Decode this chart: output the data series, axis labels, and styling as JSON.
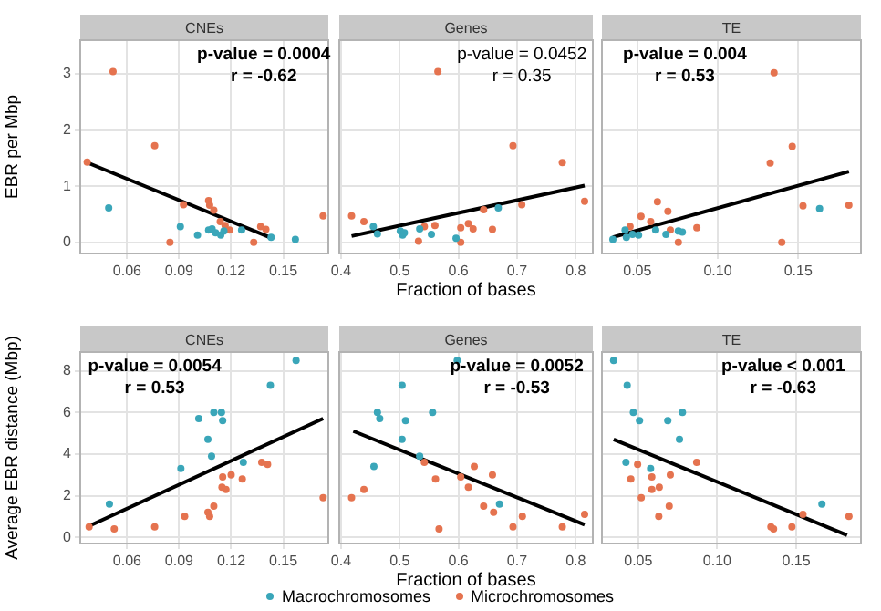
{
  "chart_data": [
    {
      "type": "scatter",
      "title": "CNEs",
      "ylabel": "EBR per Mbp",
      "annotations": [
        "p-value = 0.0004",
        "r = -0.62"
      ],
      "xlim": [
        0.033,
        0.176
      ],
      "xticks": [
        0.06,
        0.09,
        0.12,
        0.15
      ],
      "ylim": [
        -0.2,
        3.6
      ],
      "yticks": [
        0,
        1,
        2,
        3
      ],
      "grid": true,
      "marker": "circle",
      "series": [
        {
          "color": "#3aa6b9",
          "x": [
            0.0494,
            0.0907,
            0.1006,
            0.107,
            0.109,
            0.111,
            0.114,
            0.1158,
            0.126,
            0.143,
            0.157
          ],
          "values": [
            0.61,
            0.28,
            0.13,
            0.22,
            0.24,
            0.17,
            0.13,
            0.2,
            0.22,
            0.09,
            0.05
          ]
        },
        {
          "color": "#e5734f",
          "x": [
            0.0519,
            0.0759,
            0.037,
            0.0925,
            0.0847,
            0.107,
            0.1076,
            0.11,
            0.1137,
            0.1165,
            0.119,
            0.133,
            0.137,
            0.14,
            0.173
          ],
          "values": [
            3.04,
            1.72,
            1.43,
            0.67,
            0,
            0.74,
            0.66,
            0.57,
            0.37,
            0.3,
            0.22,
            0,
            0.28,
            0.23,
            0.47
          ]
        },
        {
          "type": "line",
          "color": "#000000",
          "marker": "none",
          "x": [
            0.037,
            0.1437
          ],
          "values": [
            1.42,
            0.07
          ]
        }
      ]
    },
    {
      "type": "scatter",
      "title": "Genes",
      "xlabel": "Fraction of bases",
      "annotations": [
        "p-value = 0.0452",
        "r = 0.35"
      ],
      "xlim": [
        0.397,
        0.829
      ],
      "xticks": [
        0.4,
        0.5,
        0.6,
        0.7,
        0.8
      ],
      "ylim": [
        -0.2,
        3.6
      ],
      "yticks": [
        0,
        1,
        2,
        3
      ],
      "tick_labels": "x",
      "grid": true,
      "marker": "circle",
      "series": [
        {
          "color": "#3aa6b9",
          "x": [
            0.455,
            0.462,
            0.501,
            0.505,
            0.508,
            0.534,
            0.554,
            0.596,
            0.668
          ],
          "values": [
            0.28,
            0.15,
            0.2,
            0.13,
            0.17,
            0.24,
            0.14,
            0.07,
            0.61
          ]
        },
        {
          "color": "#e5734f",
          "x": [
            0.565,
            0.693,
            0.777,
            0.815,
            0.708,
            0.643,
            0.418,
            0.439,
            0.542,
            0.56,
            0.532,
            0.604,
            0.617,
            0.625,
            0.658,
            0.604
          ],
          "values": [
            3.04,
            1.72,
            1.42,
            0.73,
            0.67,
            0.58,
            0.47,
            0.37,
            0.28,
            0.3,
            0.02,
            0.26,
            0.33,
            0.24,
            0.23,
            0
          ]
        },
        {
          "type": "line",
          "color": "#000000",
          "marker": "none",
          "x": [
            0.418,
            0.815
          ],
          "values": [
            0.11,
            1.01
          ]
        }
      ]
    },
    {
      "type": "scatter",
      "title": "TE",
      "annotations": [
        "p-value = 0.004",
        "r = 0.53"
      ],
      "xlim": [
        0.028,
        0.189
      ],
      "xticks": [
        0.05,
        {
          "value": 0.1,
          "label": "0.10"
        },
        0.15
      ],
      "ylim": [
        -0.2,
        3.6
      ],
      "yticks": [
        0,
        1,
        2,
        3
      ],
      "tick_labels": "x",
      "grid": true,
      "marker": "circle",
      "series": [
        {
          "color": "#3aa6b9",
          "x": [
            0.0348,
            0.0424,
            0.0432,
            0.047,
            0.0508,
            0.0614,
            0.0678,
            0.0755,
            0.078,
            0.1633
          ],
          "values": [
            0.05,
            0.22,
            0.09,
            0.14,
            0.13,
            0.22,
            0.14,
            0.2,
            0.18,
            0.6
          ]
        },
        {
          "color": "#e5734f",
          "x": [
            0.135,
            0.1463,
            0.1326,
            0.1815,
            0.153,
            0.1398,
            0.0625,
            0.069,
            0.0523,
            0.0583,
            0.0455,
            0.087,
            0.0705,
            0.0755
          ],
          "values": [
            3.02,
            1.71,
            1.41,
            0.66,
            0.65,
            0,
            0.72,
            0.55,
            0.46,
            0.37,
            0.28,
            0.26,
            0.22,
            0
          ]
        },
        {
          "type": "line",
          "color": "#000000",
          "marker": "none",
          "x": [
            0.0348,
            0.1815
          ],
          "values": [
            0.09,
            1.26
          ]
        }
      ]
    },
    {
      "type": "scatter",
      "title": "CNEs",
      "ylabel": "Average EBR distance (Mbp)",
      "annotations": [
        "p-value = 0.0054",
        "r = 0.53"
      ],
      "xlim": [
        0.033,
        0.176
      ],
      "xticks": [
        0.06,
        0.09,
        0.12,
        0.15
      ],
      "ylim": [
        -0.3,
        8.9
      ],
      "yticks": [
        0,
        2,
        4,
        6,
        8
      ],
      "grid": true,
      "marker": "circle",
      "series": [
        {
          "color": "#3aa6b9",
          "x": [
            0.1574,
            0.1426,
            0.1013,
            0.11,
            0.1144,
            0.1151,
            0.1066,
            0.1087,
            0.091,
            0.127,
            0.0498
          ],
          "values": [
            8.5,
            7.3,
            5.7,
            6.0,
            6.0,
            5.6,
            4.7,
            3.9,
            3.3,
            3.6,
            1.6
          ]
        },
        {
          "color": "#e5734f",
          "x": [
            0.0381,
            0.0526,
            0.0759,
            0.0932,
            0.1066,
            0.1076,
            0.11,
            0.1151,
            0.12,
            0.1147,
            0.117,
            0.1264,
            0.1376,
            0.141,
            0.173
          ],
          "values": [
            0.5,
            0.4,
            0.5,
            1.0,
            1.2,
            1.0,
            1.5,
            2.9,
            3.0,
            2.4,
            2.3,
            2.8,
            3.6,
            3.5,
            1.9
          ]
        },
        {
          "type": "line",
          "color": "#000000",
          "marker": "none",
          "x": [
            0.037,
            0.173
          ],
          "values": [
            0.5,
            5.7
          ]
        }
      ]
    },
    {
      "type": "scatter",
      "title": "Genes",
      "xlabel": "Fraction of bases",
      "annotations": [
        "p-value = 0.0052",
        "r = -0.53"
      ],
      "xlim": [
        0.397,
        0.829
      ],
      "xticks": [
        0.4,
        0.5,
        0.6,
        0.7,
        0.8
      ],
      "ylim": [
        -0.3,
        8.9
      ],
      "yticks": [
        0,
        2,
        4,
        6,
        8
      ],
      "tick_labels": "x",
      "grid": true,
      "marker": "circle",
      "legend": "bottom",
      "series": [
        {
          "name": "Macrochromosomes",
          "color": "#3aa6b9",
          "x": [
            0.598,
            0.504,
            0.462,
            0.466,
            0.51,
            0.556,
            0.504,
            0.534,
            0.456,
            0.67
          ],
          "values": [
            8.5,
            7.3,
            6.0,
            5.7,
            5.6,
            6.0,
            4.7,
            3.9,
            3.4,
            1.6
          ]
        },
        {
          "name": "Microchromosomes",
          "color": "#e5734f",
          "x": [
            0.418,
            0.439,
            0.542,
            0.627,
            0.658,
            0.561,
            0.604,
            0.617,
            0.643,
            0.66,
            0.709,
            0.693,
            0.777,
            0.815,
            0.567
          ],
          "values": [
            1.9,
            2.3,
            3.6,
            3.4,
            3.0,
            2.8,
            2.9,
            2.4,
            1.5,
            1.2,
            1.0,
            0.5,
            0.5,
            1.1,
            0.4
          ]
        },
        {
          "type": "line",
          "color": "#000000",
          "marker": "none",
          "x": [
            0.421,
            0.815
          ],
          "values": [
            5.1,
            0.6
          ]
        }
      ]
    },
    {
      "type": "scatter",
      "title": "TE",
      "annotations": [
        "p-value < 0.001",
        "r = -0.63"
      ],
      "xlim": [
        0.027,
        0.191
      ],
      "xticks": [
        0.05,
        {
          "value": 0.1,
          "label": "0.10"
        },
        0.15
      ],
      "ylim": [
        -0.3,
        8.9
      ],
      "yticks": [
        0,
        2,
        4,
        6,
        8
      ],
      "tick_labels": "x",
      "grid": true,
      "marker": "circle",
      "series": [
        {
          "color": "#3aa6b9",
          "x": [
            0.0344,
            0.043,
            0.0469,
            0.0508,
            0.0687,
            0.078,
            0.0761,
            0.0422,
            0.0578,
            0.1663
          ],
          "values": [
            8.5,
            7.3,
            6.0,
            5.6,
            5.6,
            6.0,
            4.7,
            3.6,
            3.3,
            1.6
          ]
        },
        {
          "color": "#e5734f",
          "x": [
            0.0496,
            0.0453,
            0.0586,
            0.0703,
            0.0586,
            0.0633,
            0.087,
            0.0519,
            0.0696,
            0.063,
            0.134,
            0.1357,
            0.1473,
            0.1543,
            0.1834
          ],
          "values": [
            3.5,
            2.8,
            2.9,
            3.0,
            2.3,
            2.4,
            3.6,
            1.9,
            1.5,
            1.0,
            0.5,
            0.4,
            0.5,
            1.1,
            1.0
          ]
        },
        {
          "type": "line",
          "color": "#000000",
          "marker": "none",
          "x": [
            0.0344,
            0.1822
          ],
          "values": [
            4.7,
            0.1
          ]
        }
      ]
    }
  ]
}
